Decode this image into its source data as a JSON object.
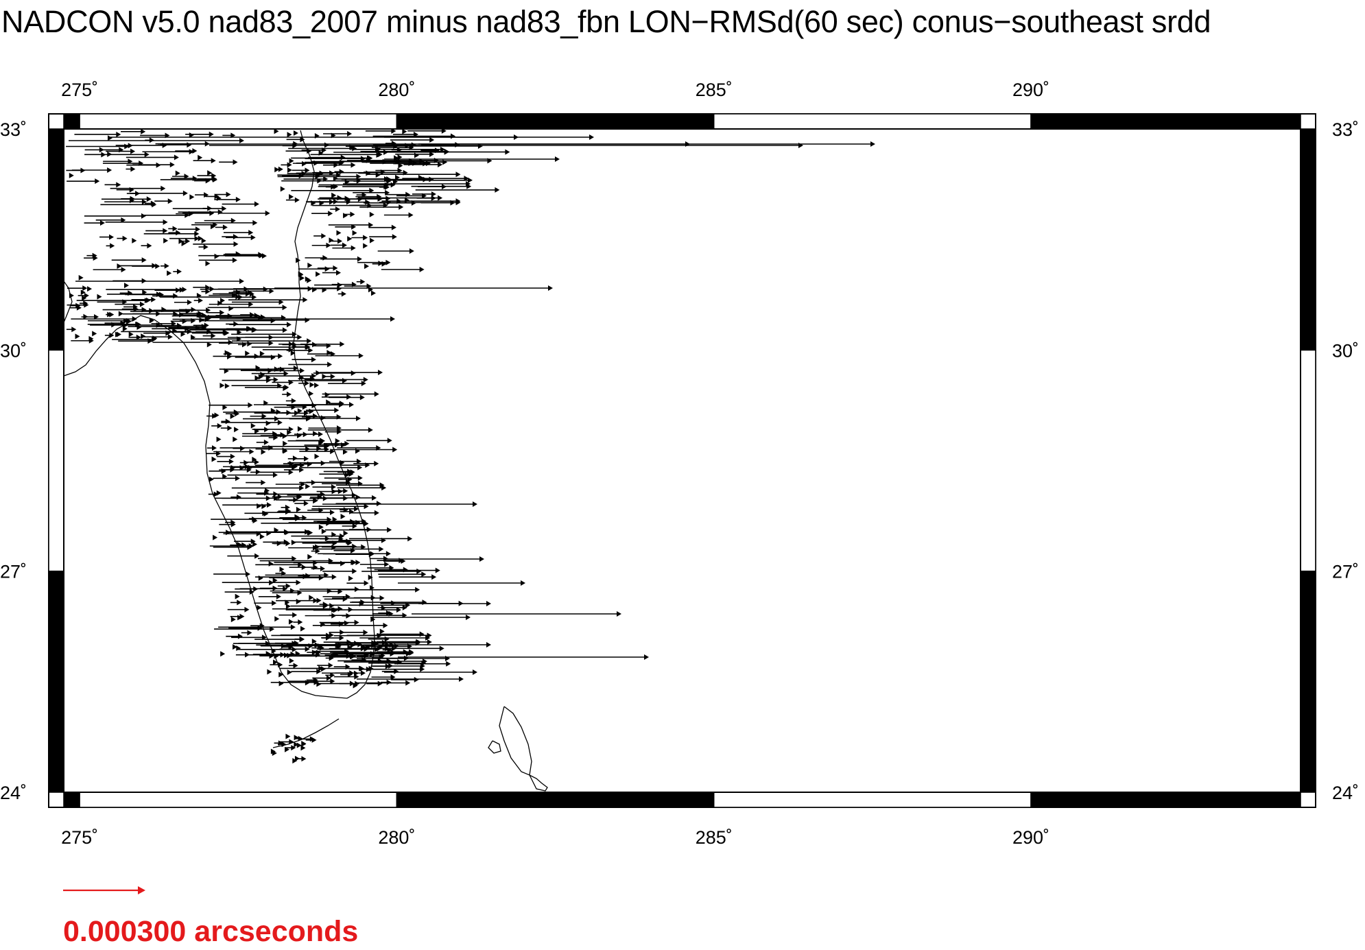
{
  "title": "NADCON v5.0 nad83_2007 minus nad83_fbn LON−RMSd(60 sec) conus−southeast srdd",
  "map": {
    "lon_range": [
      274.75,
      294.25
    ],
    "lat_range": [
      24,
      33
    ],
    "lon_ticks": [
      {
        "value": 275,
        "label": "275˚"
      },
      {
        "value": 280,
        "label": "280˚"
      },
      {
        "value": 285,
        "label": "285˚"
      },
      {
        "value": 290,
        "label": "290˚"
      }
    ],
    "lat_ticks": [
      {
        "value": 33,
        "label": "33˚"
      },
      {
        "value": 30,
        "label": "30˚"
      },
      {
        "value": 27,
        "label": "27˚"
      },
      {
        "value": 24,
        "label": "24˚"
      }
    ],
    "vector_color": "#000000",
    "coast_color": "#000000"
  },
  "legend": {
    "label": "0.000300 arcseconds",
    "color": "#e41a1c"
  }
}
